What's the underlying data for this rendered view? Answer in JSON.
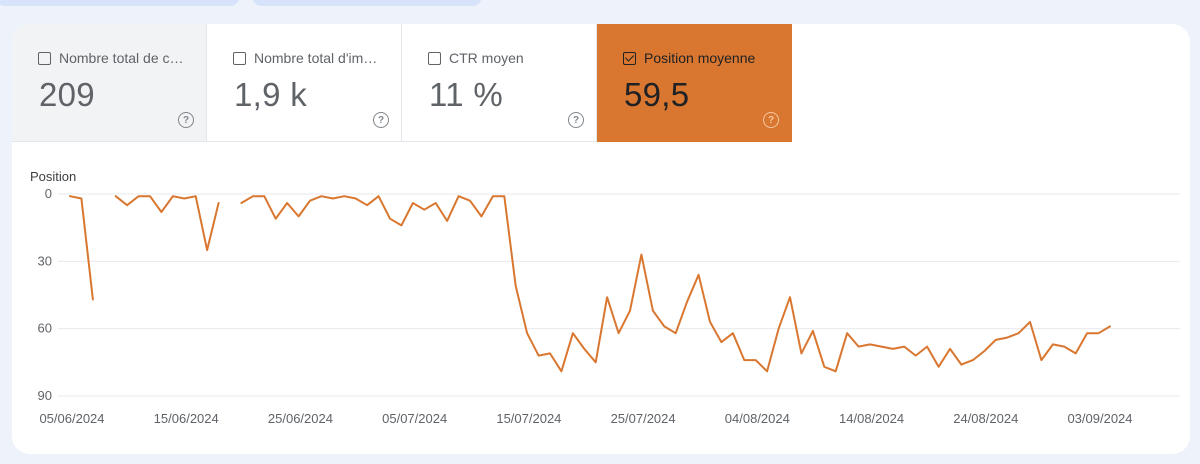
{
  "tiles": [
    {
      "label": "Nombre total de clics",
      "value": "209",
      "checked": false
    },
    {
      "label": "Nombre total d'impressions",
      "value": "1,9 k",
      "checked": false
    },
    {
      "label": "CTR moyen",
      "value": "11 %",
      "checked": false
    },
    {
      "label": "Position moyenne",
      "value": "59,5",
      "checked": true
    }
  ],
  "colors": {
    "accent": "#d97730",
    "line": "#d97730",
    "grid": "#e8eaed"
  },
  "chart_data": {
    "type": "line",
    "ylabel": "Position",
    "y_reversed": true,
    "ylim": [
      0,
      90
    ],
    "yticks": [
      0,
      30,
      60,
      90
    ],
    "xticks": [
      "05/06/2024",
      "15/06/2024",
      "25/06/2024",
      "05/07/2024",
      "15/07/2024",
      "25/07/2024",
      "04/08/2024",
      "14/08/2024",
      "24/08/2024",
      "03/09/2024"
    ],
    "x_start": "05/06/2024",
    "x_end": "03/09/2024",
    "series": [
      {
        "name": "",
        "values": [
          1,
          2,
          47,
          null,
          1,
          5,
          1,
          1,
          8,
          1,
          2,
          1,
          25,
          4,
          null,
          4,
          1,
          1,
          11,
          4,
          10,
          3,
          1,
          2,
          1,
          2,
          5,
          1,
          11,
          14,
          4,
          7,
          4,
          12,
          1,
          3,
          10,
          1,
          1,
          41,
          62,
          72,
          71,
          79,
          62,
          69,
          75,
          46,
          62,
          52,
          27,
          52,
          59,
          62,
          48,
          36,
          57,
          66,
          62,
          74,
          74,
          79,
          60,
          46,
          71,
          61,
          77,
          79,
          62,
          68,
          67,
          68,
          69,
          68,
          72,
          68,
          77,
          69,
          76,
          74,
          70,
          65,
          64,
          62,
          57,
          74,
          67,
          68,
          71,
          62,
          62,
          59
        ]
      }
    ]
  }
}
